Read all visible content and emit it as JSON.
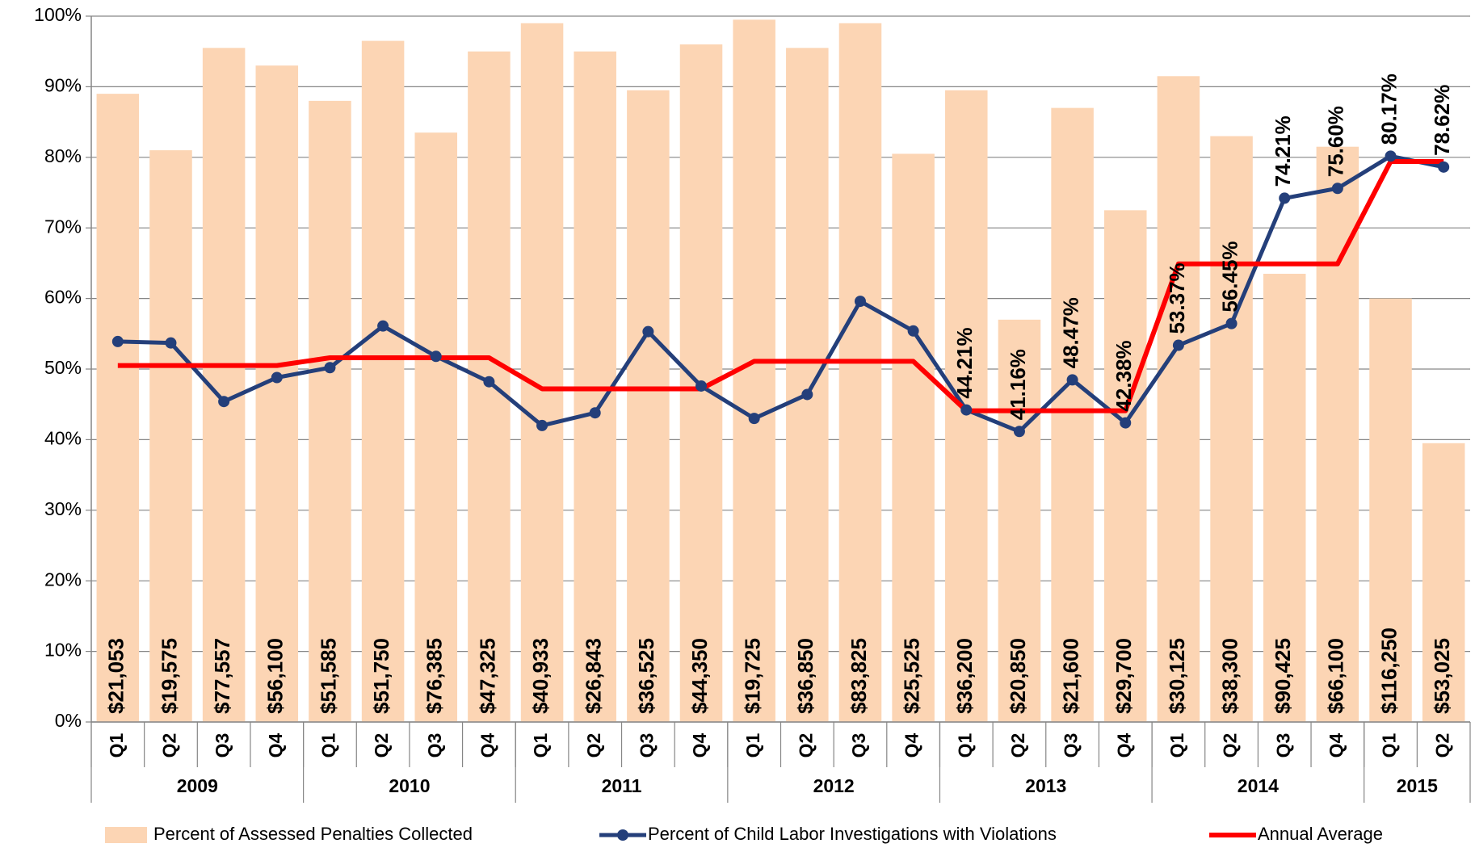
{
  "chart_data": {
    "type": "bar-line",
    "categories": [
      "Q1",
      "Q2",
      "Q3",
      "Q4",
      "Q1",
      "Q2",
      "Q3",
      "Q4",
      "Q1",
      "Q2",
      "Q3",
      "Q4",
      "Q1",
      "Q2",
      "Q3",
      "Q4",
      "Q1",
      "Q2",
      "Q3",
      "Q4",
      "Q1",
      "Q2",
      "Q3",
      "Q4",
      "Q1",
      "Q2"
    ],
    "groups": [
      "2009",
      "2010",
      "2011",
      "2012",
      "2013",
      "2014",
      "2015"
    ],
    "ylim": [
      0,
      100
    ],
    "yticks": [
      {
        "value": 0,
        "label": "0%"
      },
      {
        "value": 10,
        "label": "10%"
      },
      {
        "value": 20,
        "label": "20%"
      },
      {
        "value": 30,
        "label": "30%"
      },
      {
        "value": 40,
        "label": "40%"
      },
      {
        "value": 50,
        "label": "50%"
      },
      {
        "value": 60,
        "label": "60%"
      },
      {
        "value": 70,
        "label": "70%"
      },
      {
        "value": 80,
        "label": "80%"
      },
      {
        "value": 90,
        "label": "90%"
      },
      {
        "value": 100,
        "label": "100%"
      }
    ],
    "grid": true,
    "series": [
      {
        "name": "Percent of Assessed Penalties Collected",
        "kind": "bar",
        "color": "#fcd5b4",
        "values": [
          89,
          81,
          95.5,
          93,
          88,
          96.5,
          83.5,
          95,
          99,
          95,
          89.5,
          96,
          99.5,
          95.5,
          99,
          80.5,
          89.5,
          57,
          87,
          72.5,
          91.5,
          83,
          63.5,
          81.5,
          60,
          39.5
        ],
        "amount_labels": [
          "$21,053",
          "$19,575",
          "$77,557",
          "$56,100",
          "$51,585",
          "$51,750",
          "$76,385",
          "$47,325",
          "$40,933",
          "$26,843",
          "$36,525",
          "$44,350",
          "$19,725",
          "$36,850",
          "$83,825",
          "$25,525",
          "$36,200",
          "$20,850",
          "$21,600",
          "$29,700",
          "$30,125",
          "$38,300",
          "$90,425",
          "$66,100",
          "$116,250",
          "$53,025"
        ]
      },
      {
        "name": "Percent of Child Labor Investigations with Violations",
        "kind": "line",
        "color": "#243f7a",
        "markers": true,
        "values": [
          53.9,
          53.7,
          45.4,
          48.8,
          50.2,
          56.1,
          51.8,
          48.2,
          42,
          43.8,
          55.3,
          47.6,
          43,
          46.4,
          59.6,
          55.4,
          44.21,
          41.16,
          48.47,
          42.38,
          53.37,
          56.45,
          74.21,
          75.6,
          80.17,
          78.62
        ],
        "value_labels": [
          null,
          null,
          null,
          null,
          null,
          null,
          null,
          null,
          null,
          null,
          null,
          null,
          null,
          null,
          null,
          null,
          "44.21%",
          "41.16%",
          "48.47%",
          "42.38%",
          "53.37%",
          "56.45%",
          "74.21%",
          "75.60%",
          "80.17%",
          "78.62%"
        ]
      },
      {
        "name": "Annual Average",
        "kind": "line",
        "color": "#ff0000",
        "markers": false,
        "values": [
          50.5,
          50.5,
          50.5,
          50.5,
          51.6,
          51.6,
          51.6,
          51.6,
          47.2,
          47.2,
          47.2,
          47.2,
          51.1,
          51.1,
          51.1,
          51.1,
          44.1,
          44.1,
          44.1,
          44.1,
          64.9,
          64.9,
          64.9,
          64.9,
          79.4,
          79.4
        ]
      }
    ]
  }
}
